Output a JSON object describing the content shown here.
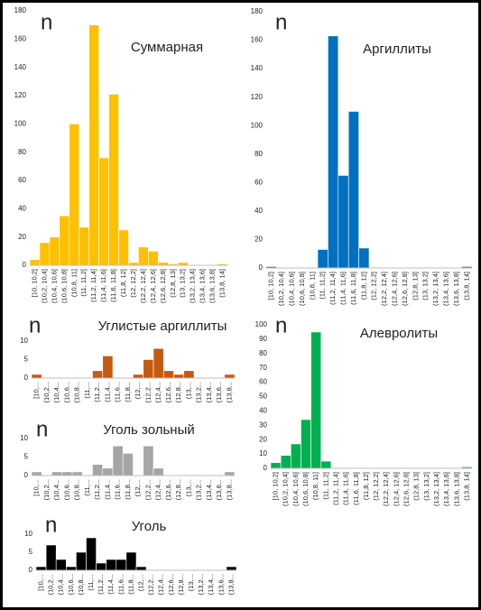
{
  "chart_data": [
    {
      "type": "bar",
      "title": "Суммарная",
      "y_label": "n",
      "color": "#ffc000",
      "categories": [
        "[10, 10,2]",
        "(10,2, 10,4]",
        "(10,4, 10,6]",
        "(10,6, 10,8]",
        "(10,8, 11]",
        "(11, 11,2]",
        "(11,2, 11,4]",
        "(11,4, 11,6]",
        "(11,6, 11,8]",
        "(11,8, 12]",
        "(12, 12,2]",
        "(12,2, 12,4]",
        "(12,4, 12,6]",
        "(12,6, 12,8]",
        "(12,8, 13]",
        "(13, 13,2]",
        "(13,2, 13,4]",
        "(13,4, 13,6]",
        "(13,6, 13,8]",
        "(13,8, 14]"
      ],
      "values": [
        4,
        16,
        20,
        35,
        100,
        27,
        170,
        76,
        121,
        25,
        2,
        13,
        10,
        2,
        1,
        2,
        0,
        0,
        0,
        1
      ],
      "ylim": [
        0,
        180
      ],
      "yticks": [
        0,
        20,
        40,
        60,
        80,
        100,
        120,
        140,
        160,
        180
      ]
    },
    {
      "type": "bar",
      "title": "Аргиллиты",
      "y_label": "n",
      "color": "#0070c0",
      "categories": [
        "[10, 10,2]",
        "(10,2, 10,4]",
        "(10,4, 10,6]",
        "(10,6, 10,8]",
        "(10,8, 11]",
        "(11, 11,2]",
        "(11,2, 11,4]",
        "(11,4, 11,6]",
        "(11,6, 11,8]",
        "(11,8, 12]",
        "(12, 12,2]",
        "(12,2, 12,4]",
        "(12,4, 12,6]",
        "(12,6, 12,8]",
        "(12,8, 13]",
        "(13, 13,2]",
        "(13,2, 13,4]",
        "(13,4, 13,6]",
        "(13,6, 13,8]",
        "(13,8, 14]"
      ],
      "values": [
        1,
        0,
        0,
        0,
        0,
        13,
        163,
        65,
        110,
        14,
        0,
        0,
        0,
        0,
        0,
        0,
        0,
        0,
        0,
        1
      ],
      "ylim": [
        0,
        180
      ],
      "yticks": [
        0,
        20,
        40,
        60,
        80,
        100,
        120,
        140,
        160,
        180
      ]
    },
    {
      "type": "bar",
      "title": "Углистые аргиллиты",
      "y_label": "n",
      "color": "#c55a11",
      "categories": [
        "[10,...",
        "(10,2...",
        "(10,4...",
        "(10,6...",
        "(10,8...",
        "(11,...",
        "(11,2...",
        "(11,4...",
        "(11,6...",
        "(11,8...",
        "(12,...",
        "(12,2...",
        "(12,4...",
        "(12,6...",
        "(12,8...",
        "(13,...",
        "(13,2...",
        "(13,4...",
        "(13,6...",
        "(13,8..."
      ],
      "values": [
        1,
        0,
        0,
        0,
        0,
        0,
        2,
        6,
        0,
        0,
        1,
        5,
        8,
        2,
        1,
        2,
        0,
        0,
        0,
        1
      ],
      "ylim": [
        0,
        10
      ],
      "yticks": [
        0,
        5,
        10
      ]
    },
    {
      "type": "bar",
      "title": "Уголь зольный",
      "y_label": "n",
      "color": "#a5a5a5",
      "categories": [
        "[10,...",
        "(10,2...",
        "(10,4...",
        "(10,6...",
        "(10,8...",
        "(11,...",
        "(11,2...",
        "(11,4...",
        "(11,6...",
        "(11,8...",
        "(12,...",
        "(12,2...",
        "(12,4...",
        "(12,6...",
        "(12,8...",
        "(13,...",
        "(13,2...",
        "(13,4...",
        "(13,6...",
        "(13,8..."
      ],
      "values": [
        1,
        0,
        1,
        1,
        1,
        0,
        3,
        2,
        8,
        6,
        0,
        8,
        2,
        0,
        0,
        0,
        0,
        0,
        0,
        1
      ],
      "ylim": [
        0,
        10
      ],
      "yticks": [
        0,
        5,
        10
      ]
    },
    {
      "type": "bar",
      "title": "Уголь",
      "y_label": "n",
      "color": "#000000",
      "categories": [
        "[10,...",
        "(10,2...",
        "(10,4...",
        "(10,6...",
        "(10,8...",
        "(11,...",
        "(11,2...",
        "(11,4...",
        "(11,6...",
        "(11,8...",
        "(12,...",
        "(12,2...",
        "(12,4...",
        "(12,6...",
        "(12,8...",
        "(13,...",
        "(13,2...",
        "(13,4...",
        "(13,6...",
        "(13,8..."
      ],
      "values": [
        1,
        7,
        3,
        1,
        5,
        9,
        2,
        3,
        3,
        5,
        1,
        0,
        0,
        0,
        0,
        0,
        0,
        0,
        0,
        1
      ],
      "ylim": [
        0,
        10
      ],
      "yticks": [
        0,
        5,
        10
      ]
    },
    {
      "type": "bar",
      "title": "Алевролиты",
      "y_label": "n",
      "color": "#00b050",
      "categories": [
        "[10, 10,2]",
        "(10,2, 10,4]",
        "(10,4, 10,6]",
        "(10,6, 10,8]",
        "(10,8, 11]",
        "(11, 11,2]",
        "(11,2, 11,4]",
        "(11,4, 11,6]",
        "(11,6, 11,8]",
        "(11,8, 12]",
        "(12, 12,2]",
        "(12,2, 12,4]",
        "(12,4, 12,6]",
        "(12,6, 12,8]",
        "(12,8, 13]",
        "(13, 13,2]",
        "(13,2, 13,4]",
        "(13,4, 13,6]",
        "(13,6, 13,8]",
        "(13,8, 14]"
      ],
      "values": [
        4,
        9,
        17,
        34,
        95,
        5,
        0,
        0,
        0,
        0,
        0,
        0,
        0,
        0,
        0,
        0,
        0,
        0,
        0,
        1
      ],
      "ylim": [
        0,
        100
      ],
      "yticks": [
        0,
        10,
        20,
        30,
        40,
        50,
        60,
        70,
        80,
        90,
        100
      ]
    }
  ]
}
